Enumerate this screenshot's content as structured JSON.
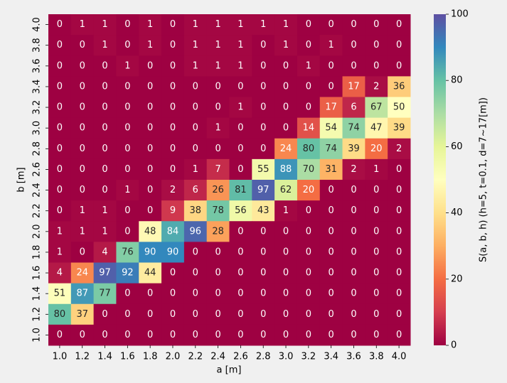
{
  "chart_data": {
    "type": "heatmap",
    "xlabel": "a [m]",
    "ylabel": "b [m]",
    "colorbar_label": "S(a, b, h) (h=5, t=0.1, d=7~17[m])",
    "colormap": "Spectral",
    "x_categories": [
      "1.0",
      "1.2",
      "1.4",
      "1.6",
      "1.8",
      "2.0",
      "2.2",
      "2.4",
      "2.6",
      "2.8",
      "3.0",
      "3.2",
      "3.4",
      "3.6",
      "3.8",
      "4.0"
    ],
    "y_categories": [
      "4.0",
      "3.8",
      "3.6",
      "3.4",
      "3.2",
      "3.0",
      "2.8",
      "2.6",
      "2.4",
      "2.2",
      "2.0",
      "1.8",
      "1.6",
      "1.4",
      "1.2",
      "1.0"
    ],
    "values": [
      [
        0,
        1,
        1,
        0,
        1,
        0,
        1,
        1,
        1,
        1,
        1,
        0,
        0,
        0,
        0,
        0
      ],
      [
        0,
        0,
        1,
        0,
        1,
        0,
        1,
        1,
        1,
        0,
        1,
        0,
        1,
        0,
        0,
        0
      ],
      [
        0,
        0,
        0,
        1,
        0,
        0,
        1,
        1,
        1,
        0,
        0,
        1,
        0,
        0,
        0,
        0
      ],
      [
        0,
        0,
        0,
        0,
        0,
        0,
        0,
        0,
        0,
        0,
        0,
        0,
        0,
        17,
        2,
        36
      ],
      [
        0,
        0,
        0,
        0,
        0,
        0,
        0,
        0,
        1,
        0,
        0,
        0,
        17,
        6,
        67,
        50
      ],
      [
        0,
        0,
        0,
        0,
        0,
        0,
        0,
        1,
        0,
        0,
        0,
        14,
        54,
        74,
        47,
        39
      ],
      [
        0,
        0,
        0,
        0,
        0,
        0,
        0,
        0,
        0,
        0,
        24,
        80,
        74,
        39,
        20,
        2
      ],
      [
        0,
        0,
        0,
        0,
        0,
        0,
        1,
        7,
        0,
        55,
        88,
        70,
        31,
        2,
        1,
        0
      ],
      [
        0,
        0,
        0,
        1,
        0,
        2,
        6,
        26,
        81,
        97,
        62,
        20,
        0,
        0,
        0,
        0
      ],
      [
        0,
        1,
        1,
        0,
        0,
        9,
        38,
        78,
        56,
        43,
        1,
        0,
        0,
        0,
        0,
        0
      ],
      [
        1,
        1,
        1,
        0,
        48,
        84,
        96,
        28,
        0,
        0,
        0,
        0,
        0,
        0,
        0,
        0
      ],
      [
        1,
        0,
        4,
        76,
        90,
        90,
        0,
        0,
        0,
        0,
        0,
        0,
        0,
        0,
        0,
        0
      ],
      [
        4,
        24,
        97,
        92,
        44,
        0,
        0,
        0,
        0,
        0,
        0,
        0,
        0,
        0,
        0,
        0
      ],
      [
        51,
        87,
        77,
        0,
        0,
        0,
        0,
        0,
        0,
        0,
        0,
        0,
        0,
        0,
        0,
        0
      ],
      [
        80,
        37,
        0,
        0,
        0,
        0,
        0,
        0,
        0,
        0,
        0,
        0,
        0,
        0,
        0,
        0
      ],
      [
        0,
        0,
        0,
        0,
        0,
        0,
        0,
        0,
        0,
        0,
        0,
        0,
        0,
        0,
        0,
        0
      ]
    ],
    "clim": [
      0,
      100
    ],
    "cticks": [
      0,
      20,
      40,
      60,
      80,
      100
    ]
  }
}
